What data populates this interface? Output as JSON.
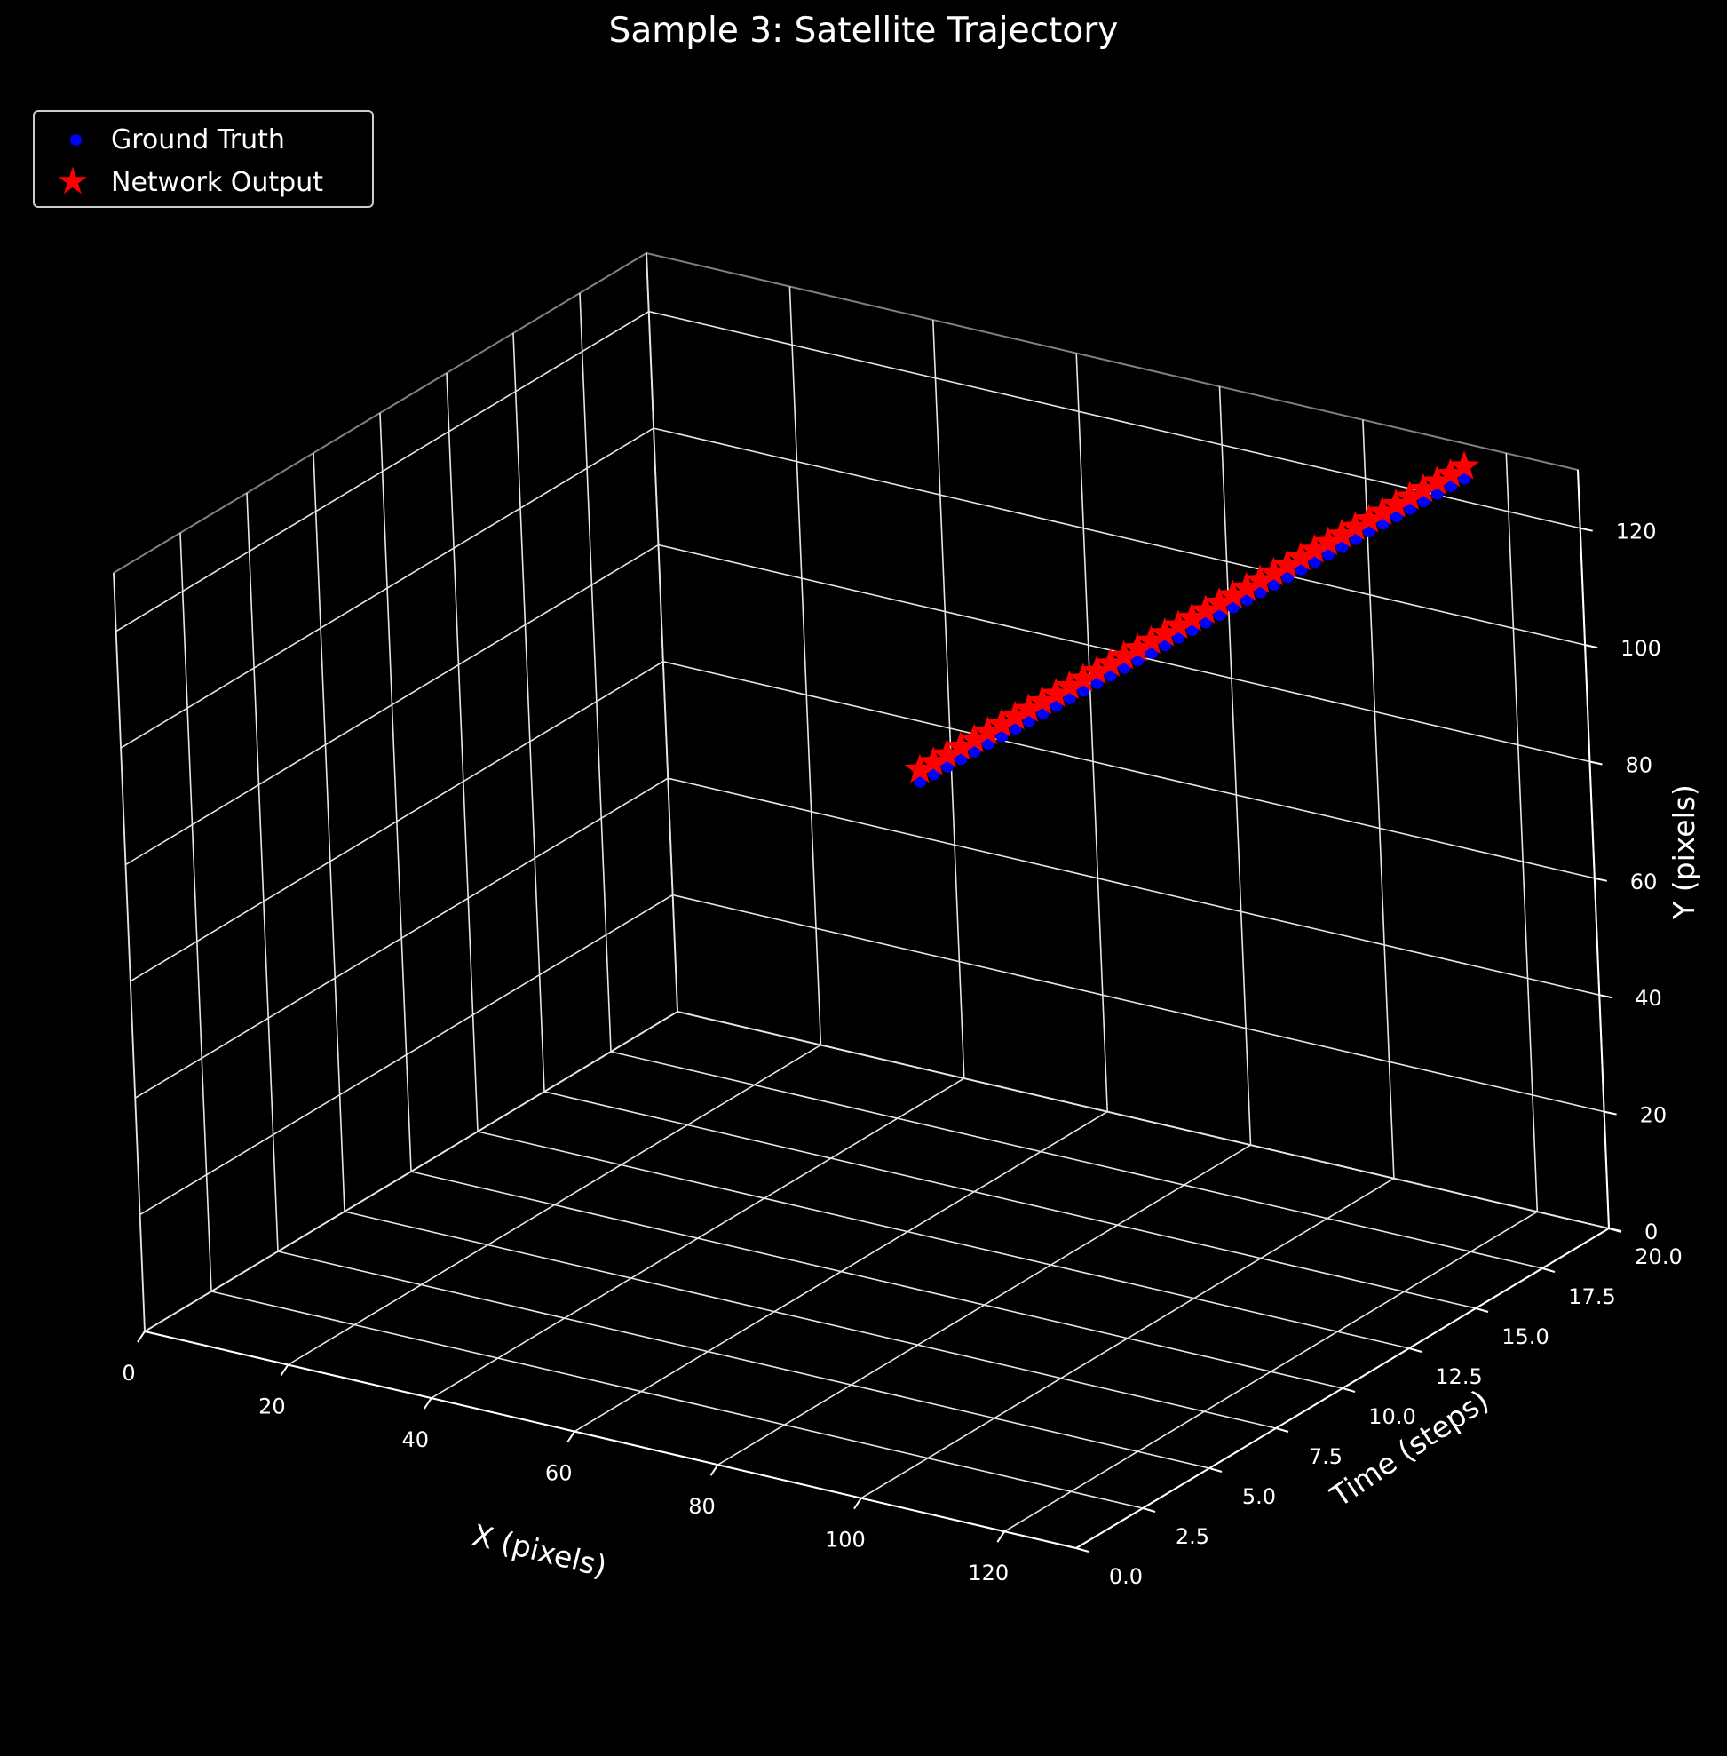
{
  "chart_data": {
    "type": "scatter",
    "projection": "3d",
    "title": "Sample 3: Satellite Trajectory",
    "xlabel": "X (pixels)",
    "ylabel": "Time (steps)",
    "zlabel": "Y (pixels)",
    "xlim": [
      0,
      130
    ],
    "ylim": [
      0,
      20
    ],
    "zlim": [
      0,
      130
    ],
    "x_ticks": [
      "0",
      "20",
      "40",
      "60",
      "80",
      "100",
      "120"
    ],
    "y_ticks": [
      "0.0",
      "2.5",
      "5.0",
      "7.5",
      "10.0",
      "12.5",
      "15.0",
      "17.5",
      "20.0"
    ],
    "z_ticks": [
      "0",
      "20",
      "40",
      "60",
      "80",
      "100",
      "120"
    ],
    "grid": true,
    "legend": "upper-left",
    "series": [
      {
        "name": "Ground Truth",
        "marker": "circle",
        "color": "#0000ff",
        "x": [
          74.0,
          75.0,
          76.0,
          77.0,
          78.0,
          79.0,
          80.0,
          81.0,
          82.0,
          83.0,
          84.0,
          85.0,
          86.0,
          87.0,
          88.0,
          89.0,
          90.0,
          91.0,
          92.0,
          93.0,
          94.0,
          95.0,
          96.0,
          97.0,
          98.0,
          99.0,
          100.0,
          101.0,
          102.0,
          103.0,
          104.0,
          105.0,
          106.0,
          107.0,
          108.0,
          109.0,
          110.0,
          111.0,
          112.0,
          113.0,
          114.0
        ],
        "t": [
          10.0,
          10.25,
          10.5,
          10.75,
          11.0,
          11.25,
          11.5,
          11.75,
          12.0,
          12.25,
          12.5,
          12.75,
          13.0,
          13.25,
          13.5,
          13.75,
          14.0,
          14.25,
          14.5,
          14.75,
          15.0,
          15.25,
          15.5,
          15.75,
          16.0,
          16.25,
          16.5,
          16.75,
          17.0,
          17.25,
          17.5,
          17.75,
          18.0,
          18.25,
          18.5,
          18.75,
          19.0,
          19.25,
          19.5,
          19.75,
          20.0
        ],
        "y": [
          88.0,
          88.9,
          89.8,
          90.7,
          91.6,
          92.5,
          93.4,
          94.3,
          95.2,
          96.1,
          97.0,
          97.9,
          98.8,
          99.7,
          100.6,
          101.5,
          102.4,
          103.3,
          104.2,
          105.1,
          106.0,
          106.9,
          107.8,
          108.7,
          109.6,
          110.5,
          111.4,
          112.3,
          113.2,
          114.1,
          115.0,
          115.9,
          116.8,
          117.7,
          118.6,
          119.5,
          120.4,
          121.3,
          122.2,
          123.1,
          124.0
        ]
      },
      {
        "name": "Network Output",
        "marker": "star",
        "color": "#ff0000",
        "x": [
          74.0,
          75.0,
          76.0,
          77.0,
          78.0,
          79.0,
          80.0,
          81.0,
          82.0,
          83.0,
          84.0,
          85.0,
          86.0,
          87.0,
          88.0,
          89.0,
          90.0,
          91.0,
          92.0,
          93.0,
          94.0,
          95.0,
          96.0,
          97.0,
          98.0,
          99.0,
          100.0,
          101.0,
          102.0,
          103.0,
          104.0,
          105.0,
          106.0,
          107.0,
          108.0,
          109.0,
          110.0,
          111.0,
          112.0,
          113.0,
          114.0
        ],
        "t": [
          10.0,
          10.25,
          10.5,
          10.75,
          11.0,
          11.25,
          11.5,
          11.75,
          12.0,
          12.25,
          12.5,
          12.75,
          13.0,
          13.25,
          13.5,
          13.75,
          14.0,
          14.25,
          14.5,
          14.75,
          15.0,
          15.25,
          15.5,
          15.75,
          16.0,
          16.25,
          16.5,
          16.75,
          17.0,
          17.25,
          17.5,
          17.75,
          18.0,
          18.25,
          18.5,
          18.75,
          19.0,
          19.25,
          19.5,
          19.75,
          20.0
        ],
        "y": [
          90.0,
          90.9,
          91.8,
          92.7,
          93.6,
          94.5,
          95.4,
          96.3,
          97.2,
          98.1,
          99.0,
          99.9,
          100.8,
          101.7,
          102.6,
          103.5,
          104.4,
          105.3,
          106.2,
          107.1,
          108.0,
          108.9,
          109.8,
          110.7,
          111.6,
          112.5,
          113.4,
          114.3,
          115.2,
          116.1,
          117.0,
          117.9,
          118.8,
          119.7,
          120.6,
          121.5,
          122.4,
          123.3,
          124.2,
          125.1,
          126.0
        ]
      }
    ]
  }
}
